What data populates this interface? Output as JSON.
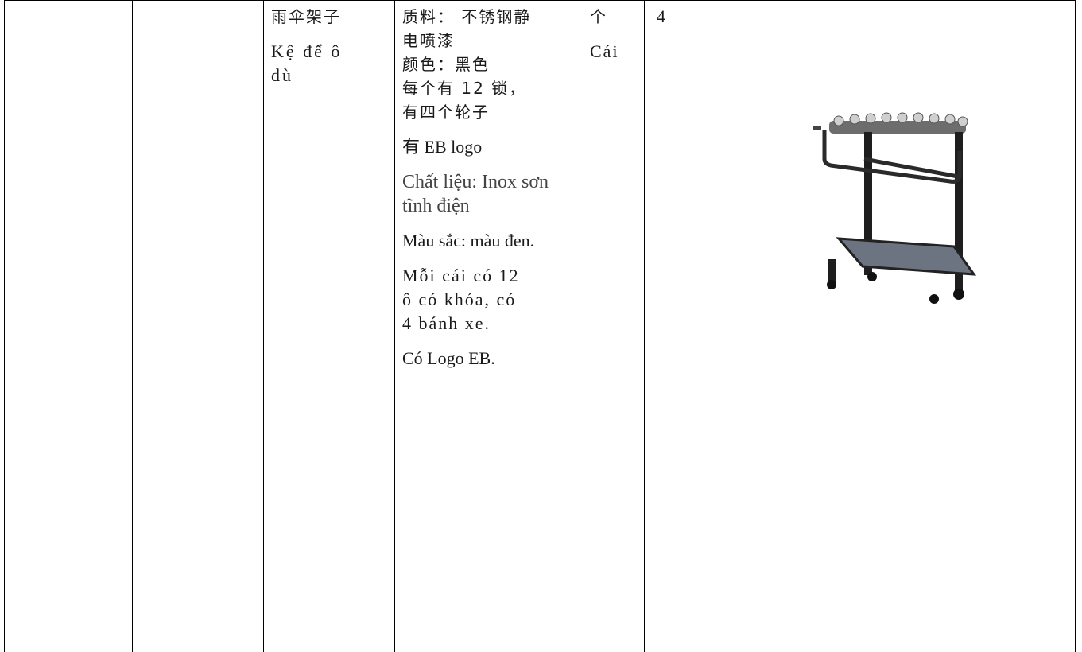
{
  "row": {
    "name": [
      "雨伞架子",
      "Kệ để ô dù"
    ],
    "description": [
      "质料： 不锈钢静电喷漆",
      "颜色：黑色",
      "每个有 12 锁，有四个轮子",
      "有 EB logo",
      "Chất liệu: Inox sơn tĩnh điện",
      "Màu sắc: màu đen.",
      "Mỗi cái có 12 ô có khóa, có 4 bánh xe.",
      "Có Logo EB."
    ],
    "unit": [
      "个",
      "Cái"
    ],
    "quantity": 4
  }
}
